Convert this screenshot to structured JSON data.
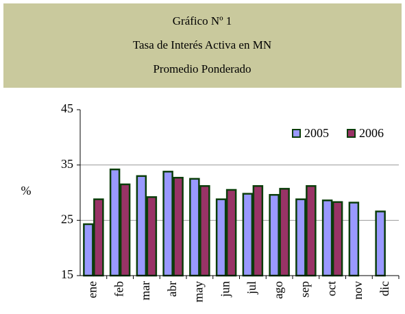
{
  "chart_data": {
    "type": "bar",
    "title": "Gráfico Nº 1",
    "subtitle": "Tasa de Interés Activa en MN",
    "subtitle2": "Promedio Ponderado",
    "ylabel": "%",
    "categories": [
      "ene",
      "feb",
      "mar",
      "abr",
      "may",
      "jun",
      "jul",
      "ago",
      "sep",
      "oct",
      "nov",
      "dic"
    ],
    "series": [
      {
        "name": "2005",
        "color": "#9999ff",
        "values": [
          24.3,
          34.2,
          33.0,
          33.8,
          32.5,
          28.8,
          29.8,
          29.6,
          28.8,
          28.6,
          28.2,
          26.6
        ]
      },
      {
        "name": "2006",
        "color": "#993366",
        "values": [
          28.8,
          31.5,
          29.2,
          32.7,
          31.2,
          30.5,
          31.2,
          30.7,
          31.2,
          28.3,
          null,
          null
        ]
      }
    ],
    "ylim": [
      15,
      45
    ],
    "yticks": [
      15,
      25,
      35,
      45
    ],
    "grid": true,
    "legend": "upper right"
  }
}
